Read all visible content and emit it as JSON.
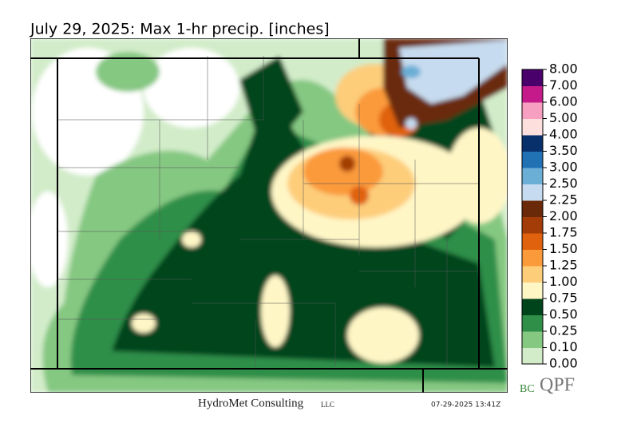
{
  "title": "July 29, 2025: Max 1-hr precip. [inches]",
  "colorbar": {
    "ticks": [
      {
        "value": 0,
        "label": "0.00"
      },
      {
        "value": 0.1,
        "label": "0.10"
      },
      {
        "value": 0.25,
        "label": "0.25"
      },
      {
        "value": 0.5,
        "label": "0.50"
      },
      {
        "value": 0.75,
        "label": "0.75"
      },
      {
        "value": 1,
        "label": "1.00"
      },
      {
        "value": 1.25,
        "label": "1.25"
      },
      {
        "value": 1.5,
        "label": "1.50"
      },
      {
        "value": 1.75,
        "label": "1.75"
      },
      {
        "value": 2,
        "label": "2.00"
      },
      {
        "value": 2.25,
        "label": "2.25"
      },
      {
        "value": 2.5,
        "label": "2.50"
      },
      {
        "value": 3,
        "label": "3.00"
      },
      {
        "value": 3.5,
        "label": "3.50"
      },
      {
        "value": 4,
        "label": "4.00"
      },
      {
        "value": 5,
        "label": "5.00"
      },
      {
        "value": 6,
        "label": "6.00"
      },
      {
        "value": 7,
        "label": "7.00"
      },
      {
        "value": 8,
        "label": "8.00"
      }
    ],
    "colors": [
      "#ffffff",
      "#d2ecc9",
      "#85c882",
      "#2f8f48",
      "#00441b",
      "#fff6c6",
      "#fdcd7a",
      "#fb9a3a",
      "#e0620f",
      "#a33c06",
      "#6a2a0a",
      "#c6dbef",
      "#6baed6",
      "#2171b5",
      "#08306b",
      "#fde0dd",
      "#f79fc0",
      "#c51b8a",
      "#49006a"
    ]
  },
  "footer": {
    "company": "HydroMet Consulting",
    "suffix": "LLC",
    "timestamp": "07-29-2025 13:41Z"
  },
  "logo": {
    "prefix": "BC",
    "main": "QPF"
  }
}
